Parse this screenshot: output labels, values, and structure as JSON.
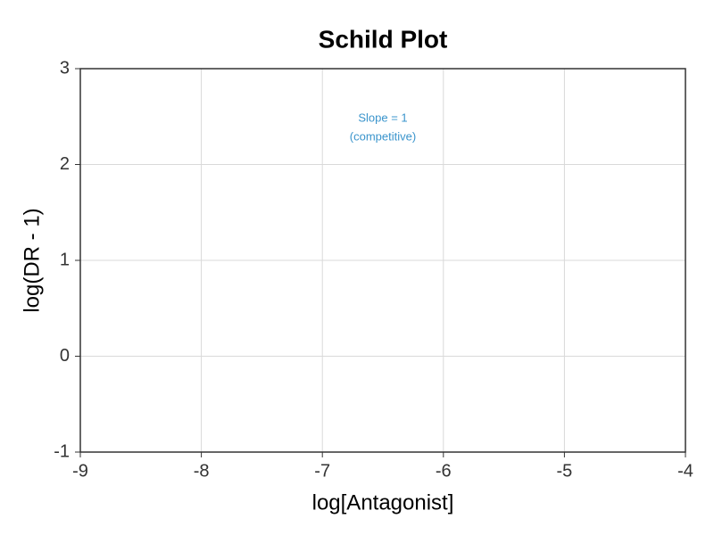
{
  "chart_data": {
    "type": "scatter",
    "title": "Schild Plot",
    "x_label": "log[Antagonist]",
    "y_label": "log(DR - 1)",
    "xlim": [
      -9,
      -4
    ],
    "xticks": [
      -9,
      -8,
      -7,
      -6,
      -5,
      -4
    ],
    "ylim": [
      -1,
      3
    ],
    "yticks": [
      -1,
      0,
      1,
      2,
      3
    ],
    "grid": true,
    "annotation": [
      "Slope = 1",
      "(competitive)"
    ],
    "annotation_color": "#3a94cc",
    "series": []
  }
}
